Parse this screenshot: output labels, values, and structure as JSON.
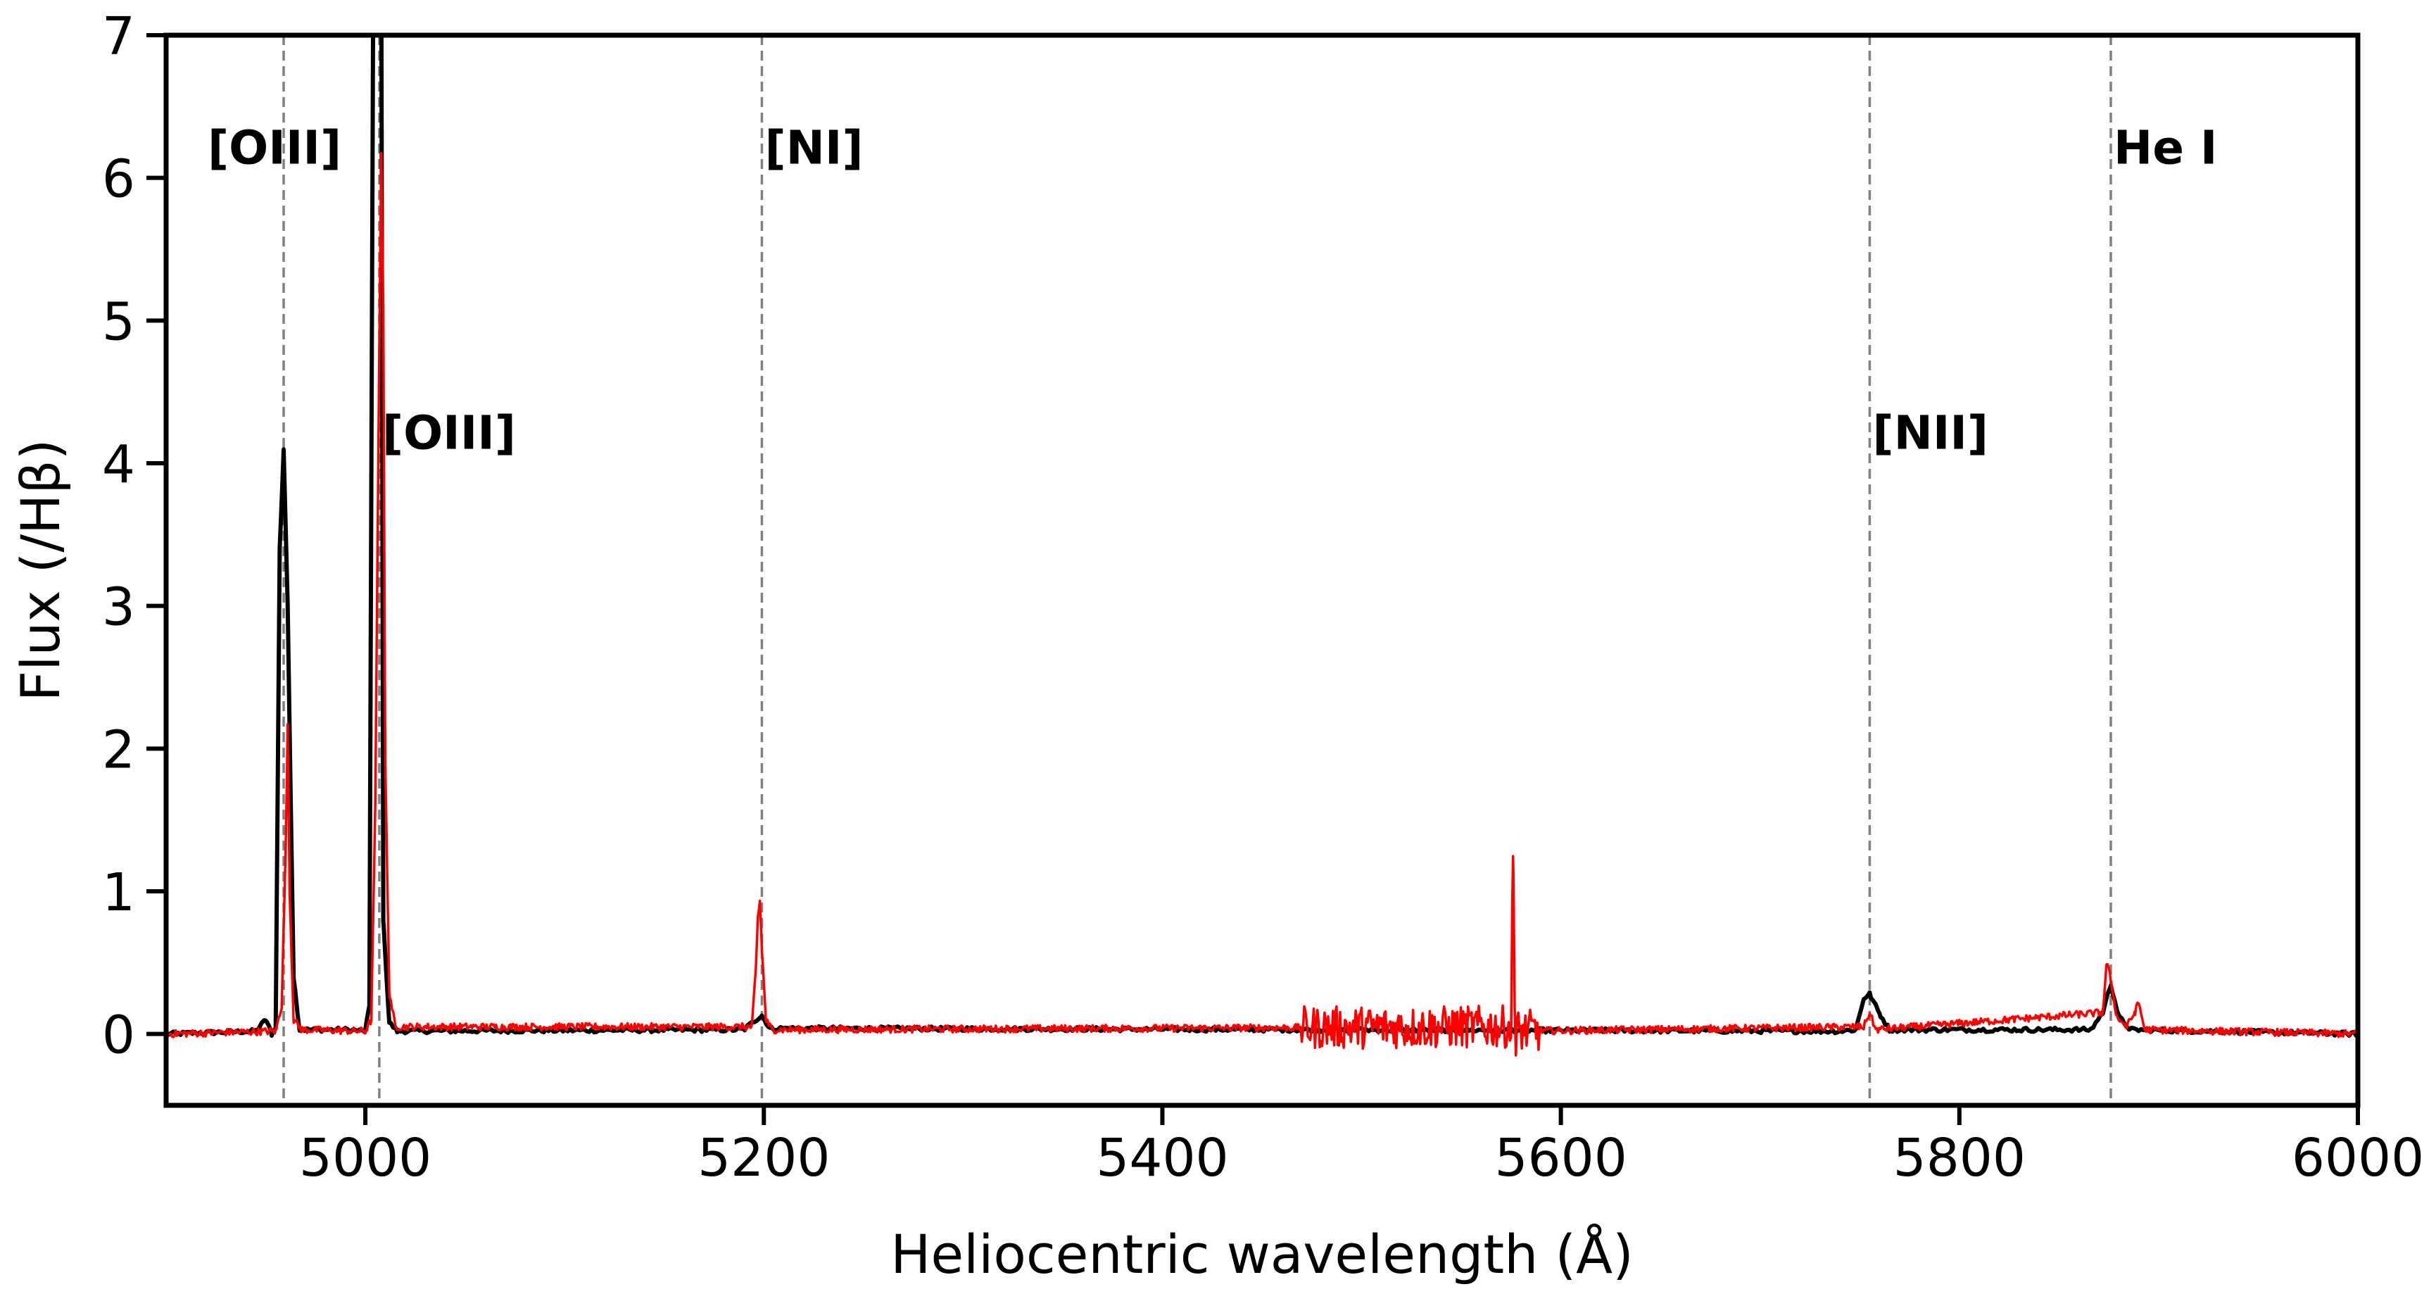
{
  "chart_data": {
    "type": "line",
    "title": "",
    "xlabel": "Heliocentric wavelength (Å)",
    "ylabel": "Flux (/Hβ)",
    "xlim": [
      4900,
      6000
    ],
    "ylim": [
      -0.5,
      7
    ],
    "xticks": [
      5000,
      5200,
      5400,
      5600,
      5800,
      6000
    ],
    "yticks": [
      0,
      1,
      2,
      3,
      4,
      5,
      6,
      7
    ],
    "grid": false,
    "legend": "none",
    "colors": {
      "series_black": "#000000",
      "series_red": "#ff0000",
      "marker_lines": "#808080"
    },
    "reference_lines": [
      {
        "label": "[OIII]",
        "x": 4959,
        "label_y": 6.1
      },
      {
        "label": "[OIII]",
        "x": 5007,
        "label_y": 4.1
      },
      {
        "label": "[NI]",
        "x": 5199,
        "label_y": 6.1
      },
      {
        "label": "[NII]",
        "x": 5755,
        "label_y": 4.1
      },
      {
        "label": "He I",
        "x": 5876,
        "label_y": 6.1
      }
    ],
    "series": [
      {
        "color": "#000000",
        "points": [
          [
            4900,
            0.0
          ],
          [
            4945,
            0.02
          ],
          [
            4950,
            0.1
          ],
          [
            4953,
            0.0
          ],
          [
            4955,
            0.05
          ],
          [
            4957,
            3.4
          ],
          [
            4959,
            4.1
          ],
          [
            4961,
            3.0
          ],
          [
            4964,
            0.4
          ],
          [
            4967,
            0.03
          ],
          [
            4990,
            0.03
          ],
          [
            5000,
            0.02
          ],
          [
            5002,
            0.2
          ],
          [
            5004,
            7.5
          ],
          [
            5008,
            7.5
          ],
          [
            5009,
            0.8
          ],
          [
            5012,
            0.08
          ],
          [
            5016,
            0.02
          ],
          [
            5190,
            0.03
          ],
          [
            5196,
            0.1
          ],
          [
            5199,
            0.13
          ],
          [
            5203,
            0.04
          ],
          [
            5740,
            0.02
          ],
          [
            5748,
            0.03
          ],
          [
            5752,
            0.25
          ],
          [
            5755,
            0.28
          ],
          [
            5760,
            0.14
          ],
          [
            5765,
            0.03
          ],
          [
            5866,
            0.03
          ],
          [
            5872,
            0.15
          ],
          [
            5876,
            0.35
          ],
          [
            5880,
            0.12
          ],
          [
            5886,
            0.03
          ],
          [
            6000,
            0.0
          ]
        ]
      },
      {
        "color": "#ff0000",
        "points": [
          [
            4900,
            0.0
          ],
          [
            4955,
            0.02
          ],
          [
            4958,
            0.2
          ],
          [
            4960,
            1.3
          ],
          [
            4961,
            2.15
          ],
          [
            4962,
            1.0
          ],
          [
            4964,
            0.1
          ],
          [
            4968,
            0.03
          ],
          [
            5000,
            0.02
          ],
          [
            5003,
            0.1
          ],
          [
            5005,
            1.6
          ],
          [
            5007,
            4.8
          ],
          [
            5008,
            6.15
          ],
          [
            5009,
            5.1
          ],
          [
            5010,
            1.9
          ],
          [
            5012,
            0.3
          ],
          [
            5015,
            0.05
          ],
          [
            5194,
            0.05
          ],
          [
            5196,
            0.45
          ],
          [
            5197,
            0.82
          ],
          [
            5198,
            0.93
          ],
          [
            5199,
            0.6
          ],
          [
            5201,
            0.1
          ],
          [
            5204,
            0.03
          ],
          [
            5575,
            0.05
          ],
          [
            5576,
            1.28
          ],
          [
            5577,
            0.1
          ],
          [
            5577.5,
            -0.18
          ],
          [
            5578,
            0.02
          ],
          [
            5752,
            0.05
          ],
          [
            5755,
            0.15
          ],
          [
            5758,
            0.03
          ],
          [
            5872,
            0.15
          ],
          [
            5874,
            0.5
          ],
          [
            5876,
            0.38
          ],
          [
            5879,
            0.12
          ],
          [
            5884,
            0.05
          ],
          [
            5888,
            0.15
          ],
          [
            5890,
            0.22
          ],
          [
            5893,
            0.03
          ],
          [
            6000,
            0.0
          ]
        ],
        "noise": [
          {
            "from": 4900,
            "to": 5470,
            "amplitude": 0.05
          },
          {
            "from": 5470,
            "to": 5590,
            "amplitude": 0.3
          },
          {
            "from": 5590,
            "to": 6000,
            "amplitude": 0.05
          }
        ]
      }
    ]
  }
}
